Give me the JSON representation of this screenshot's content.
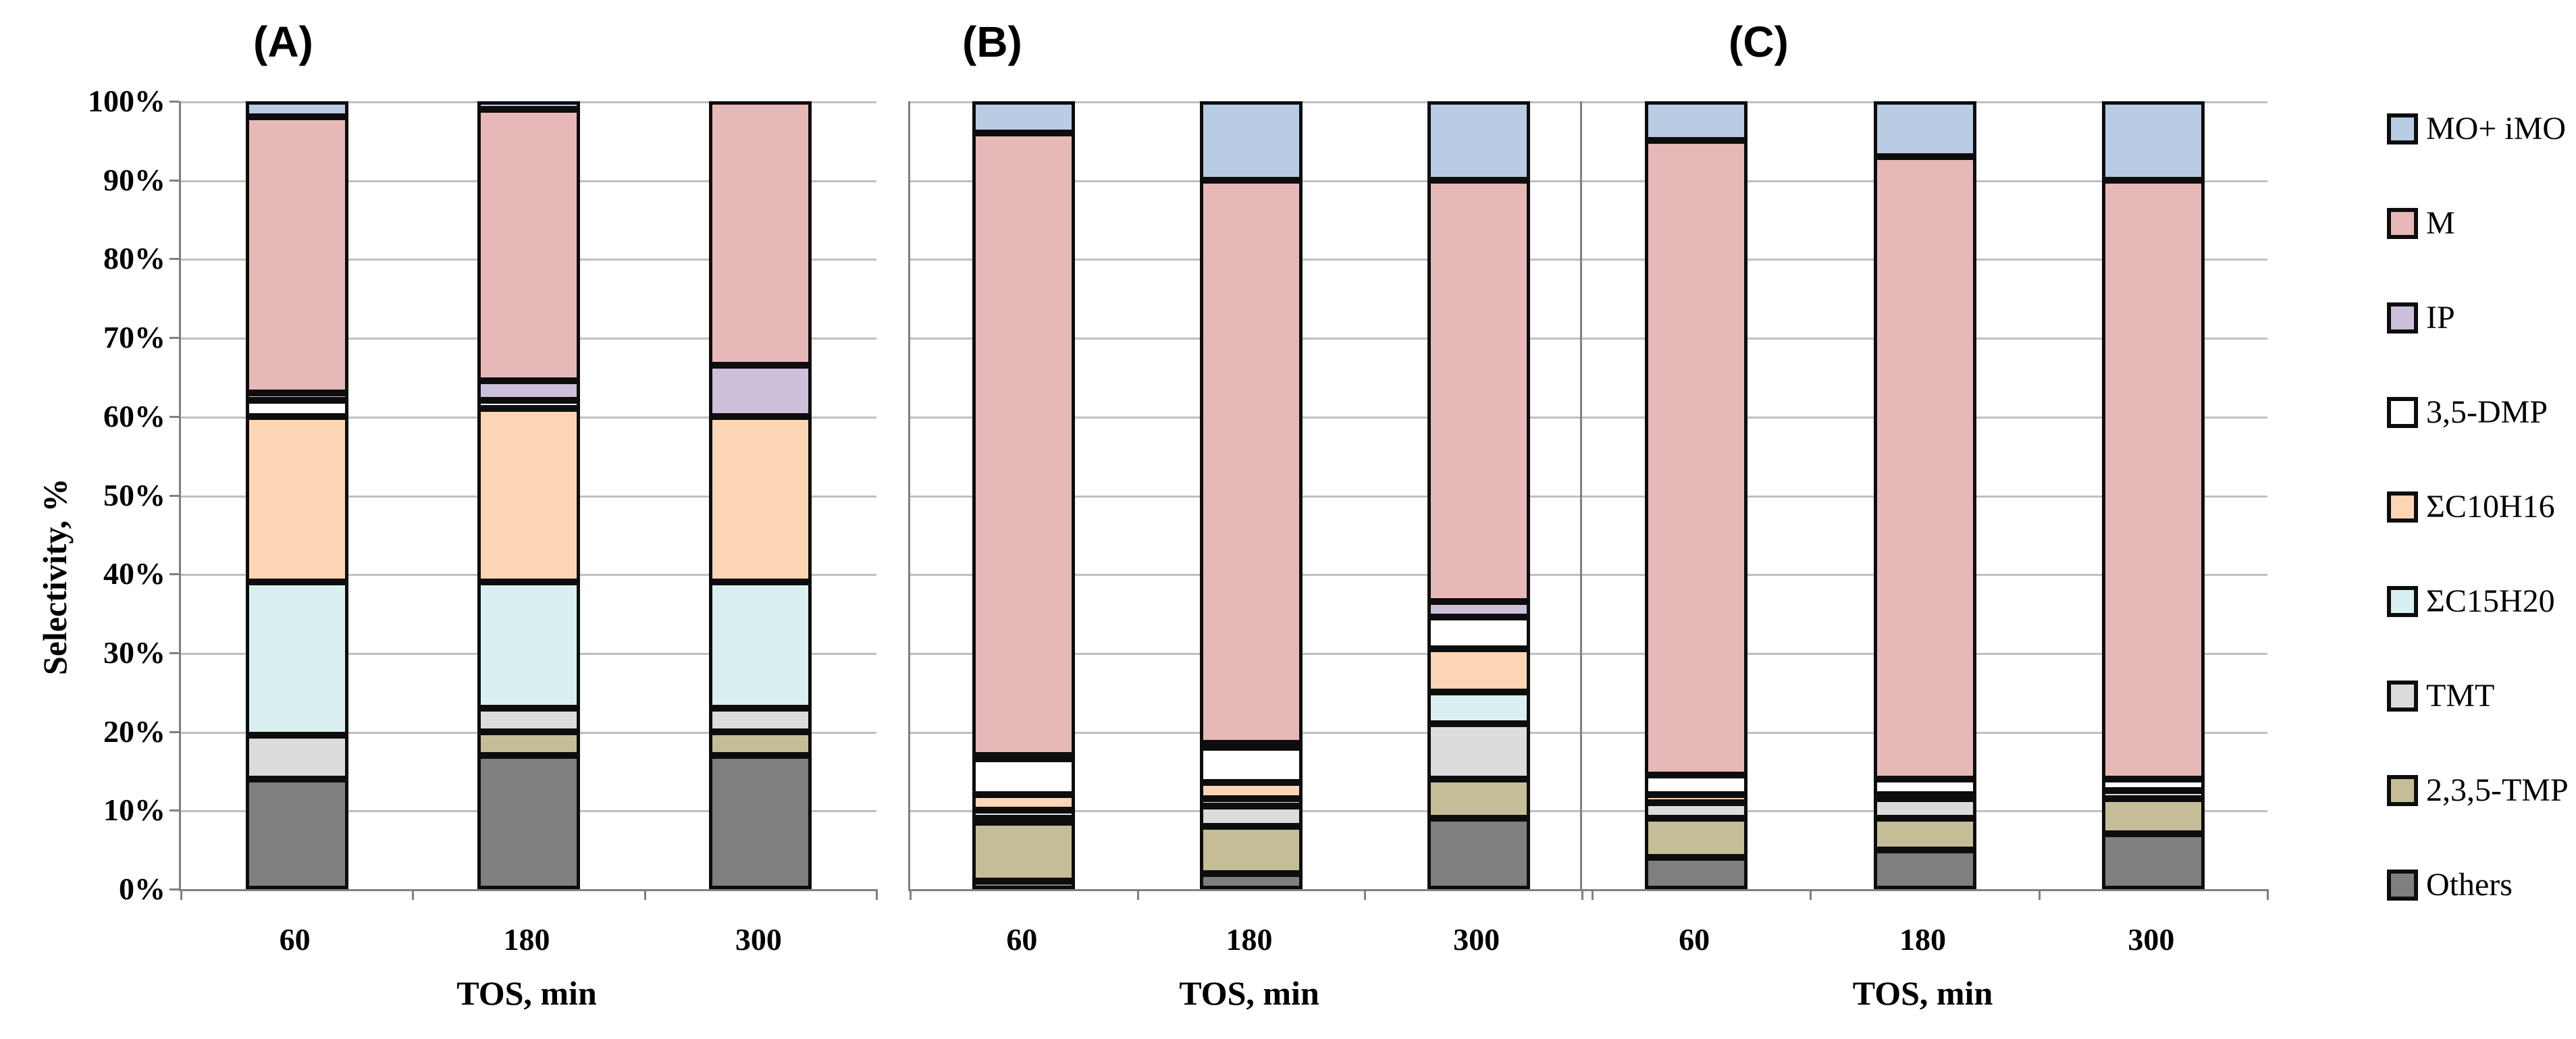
{
  "figure": {
    "ylabel": "Selectivity, %",
    "xlabel": "TOS, min",
    "yticks": [
      "100%",
      "90%",
      "80%",
      "70%",
      "60%",
      "50%",
      "40%",
      "30%",
      "20%",
      "10%",
      "0%"
    ],
    "categories": [
      "60",
      "180",
      "300"
    ]
  },
  "legend": {
    "items": [
      {
        "label": "MO+ iMO",
        "color": "#b8cce4"
      },
      {
        "label": "M",
        "color": "#e6b9b8"
      },
      {
        "label": "IP",
        "color": "#ccc0da"
      },
      {
        "label": "3,5-DMP",
        "color": "#ffffff"
      },
      {
        "label": "ΣC10H16",
        "color": "#fcd5b4"
      },
      {
        "label": "ΣC15H20",
        "color": "#daf0f0"
      },
      {
        "label": "TMT",
        "color": "#dcdcdc"
      },
      {
        "label": "2,3,5-TMP",
        "color": "#c4bd97"
      },
      {
        "label": "Others",
        "color": "#7f7f7f"
      }
    ]
  },
  "chart_data": {
    "type": "bar",
    "subtype": "stacked-percent",
    "title": "",
    "xlabel": "TOS, min",
    "ylabel": "Selectivity, %",
    "ylim": [
      0,
      100
    ],
    "grid": true,
    "legend_position": "right",
    "categories": [
      "60",
      "180",
      "300"
    ],
    "stack_order_bottom_to_top": [
      "Others",
      "2,3,5-TMP",
      "TMT",
      "ΣC15H20",
      "ΣC10H16",
      "3,5-DMP",
      "IP",
      "M",
      "MO+ iMO"
    ],
    "series_colors": {
      "Others": "#7f7f7f",
      "2,3,5-TMP": "#c4bd97",
      "TMT": "#dcdcdc",
      "ΣC15H20": "#daf0f0",
      "ΣC10H16": "#fcd5b4",
      "3,5-DMP": "#ffffff",
      "IP": "#ccc0da",
      "M": "#e6b9b8",
      "MO+ iMO": "#b8cce4"
    },
    "panels": [
      {
        "label": "(A)",
        "series": [
          {
            "name": "Others",
            "values": [
              14,
              17,
              17
            ]
          },
          {
            "name": "2,3,5-TMP",
            "values": [
              0,
              3,
              3
            ]
          },
          {
            "name": "TMT",
            "values": [
              5.5,
              3,
              3
            ]
          },
          {
            "name": "ΣC15H20",
            "values": [
              19.5,
              16,
              16
            ]
          },
          {
            "name": "ΣC10H16",
            "values": [
              21,
              22,
              21
            ]
          },
          {
            "name": "3,5-DMP",
            "values": [
              2,
              1,
              0
            ]
          },
          {
            "name": "IP",
            "values": [
              1,
              2.5,
              6.5
            ]
          },
          {
            "name": "M",
            "values": [
              35,
              34.5,
              33.5
            ]
          },
          {
            "name": "MO+ iMO",
            "values": [
              2,
              1,
              0
            ]
          }
        ]
      },
      {
        "label": "(B)",
        "series": [
          {
            "name": "Others",
            "values": [
              1,
              2,
              9
            ]
          },
          {
            "name": "2,3,5-TMP",
            "values": [
              7.5,
              6,
              5
            ]
          },
          {
            "name": "TMT",
            "values": [
              0.5,
              2.5,
              7
            ]
          },
          {
            "name": "ΣC15H20",
            "values": [
              1,
              1,
              4
            ]
          },
          {
            "name": "ΣC10H16",
            "values": [
              2,
              2,
              5.5
            ]
          },
          {
            "name": "3,5-DMP",
            "values": [
              4.5,
              4.5,
              4
            ]
          },
          {
            "name": "IP",
            "values": [
              0.5,
              0.5,
              2
            ]
          },
          {
            "name": "M",
            "values": [
              79,
              71.5,
              53.5
            ]
          },
          {
            "name": "MO+ iMO",
            "values": [
              4,
              10,
              10
            ]
          }
        ]
      },
      {
        "label": "(C)",
        "series": [
          {
            "name": "Others",
            "values": [
              4,
              5,
              7
            ]
          },
          {
            "name": "2,3,5-TMP",
            "values": [
              5,
              4,
              4.5
            ]
          },
          {
            "name": "TMT",
            "values": [
              2,
              2.5,
              1
            ]
          },
          {
            "name": "ΣC15H20",
            "values": [
              0,
              0,
              0
            ]
          },
          {
            "name": "ΣC10H16",
            "values": [
              1,
              0.5,
              0
            ]
          },
          {
            "name": "3,5-DMP",
            "values": [
              2.5,
              2,
              1.5
            ]
          },
          {
            "name": "IP",
            "values": [
              0,
              0,
              0
            ]
          },
          {
            "name": "M",
            "values": [
              80.5,
              79,
              76
            ]
          },
          {
            "name": "MO+ iMO",
            "values": [
              5,
              7,
              10
            ]
          }
        ]
      }
    ]
  }
}
